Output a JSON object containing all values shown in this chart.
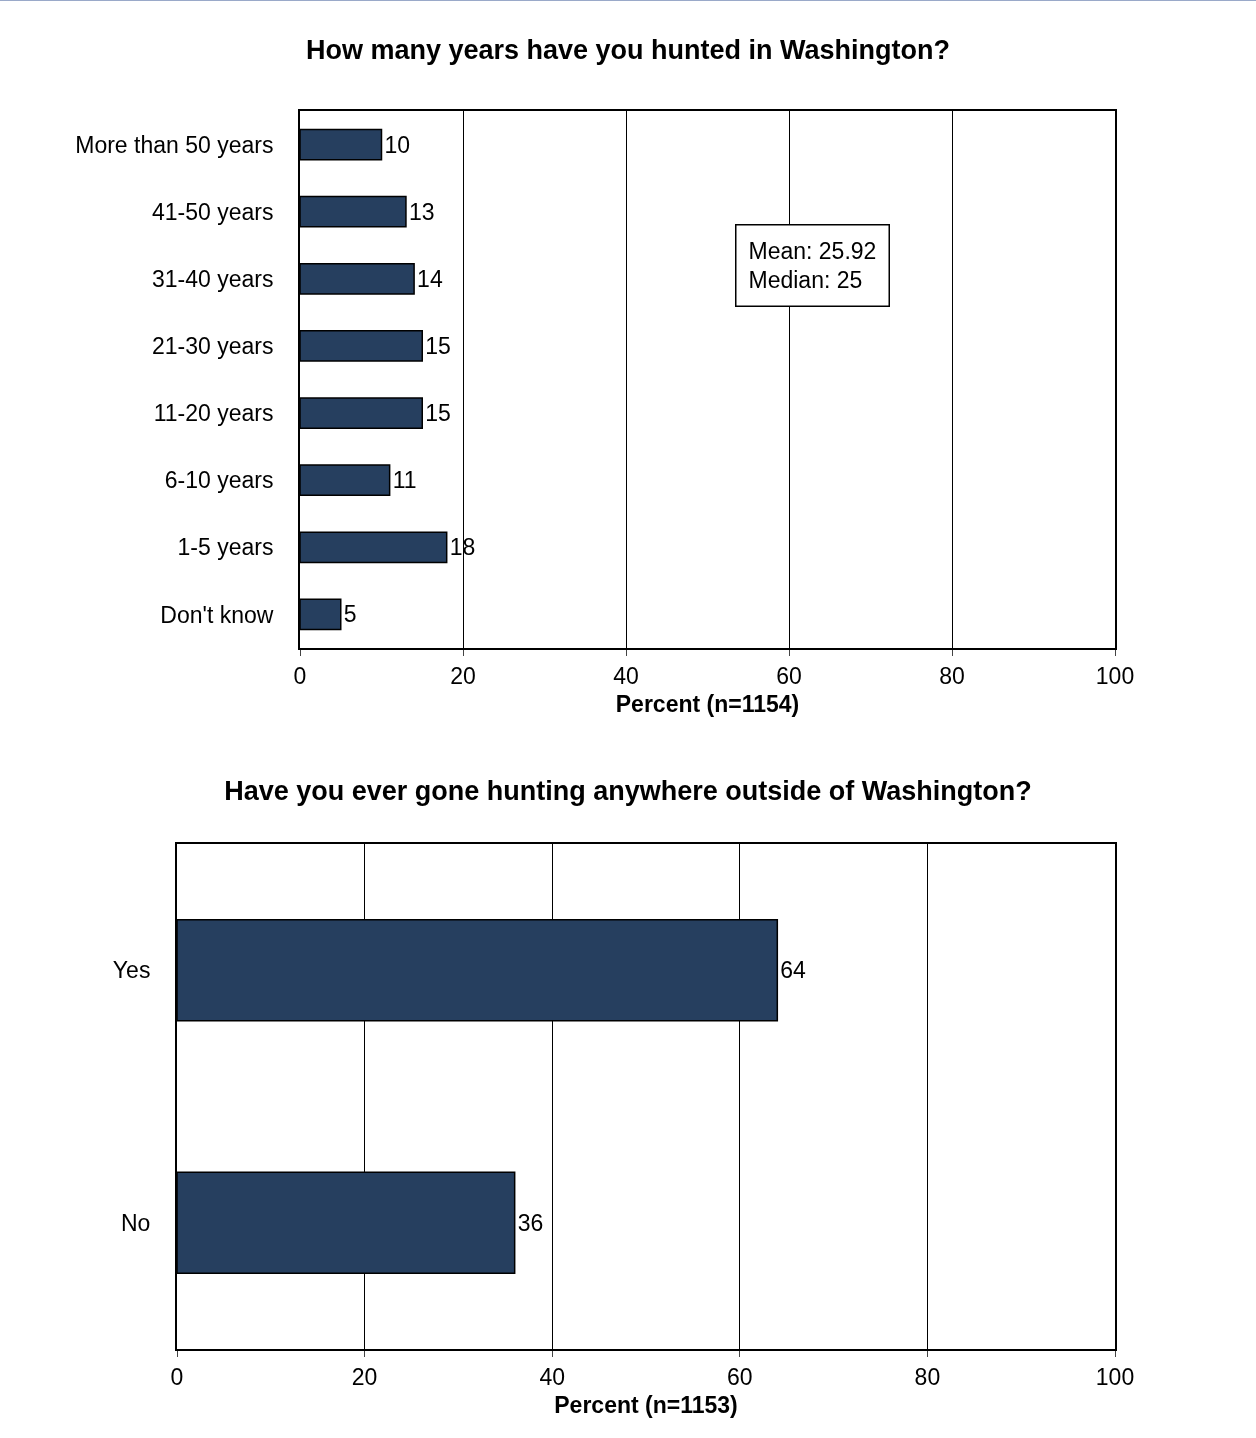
{
  "chart_data": [
    {
      "type": "bar",
      "orientation": "horizontal",
      "title": "How many years have you hunted in Washington?",
      "xlabel": "Percent (n=1154)",
      "categories": [
        "More than 50 years",
        "41-50 years",
        "31-40 years",
        "21-30 years",
        "11-20 years",
        "6-10 years",
        "1-5 years",
        "Don't know"
      ],
      "values": [
        10,
        13,
        14,
        15,
        15,
        11,
        18,
        5
      ],
      "color": "#263f5f",
      "xlim": [
        0,
        100
      ],
      "xticks": [
        0,
        20,
        40,
        60,
        80,
        100
      ],
      "grid": "x",
      "data_labels": true,
      "annotations": [
        "Mean: 25.92\nMedian: 25"
      ]
    },
    {
      "type": "bar",
      "orientation": "horizontal",
      "title": "Have you ever gone hunting anywhere outside of Washington?",
      "xlabel": "Percent (n=1153)",
      "categories": [
        "Yes",
        "No"
      ],
      "values": [
        64,
        36
      ],
      "color": "#263f5f",
      "xlim": [
        0,
        100
      ],
      "xticks": [
        0,
        20,
        40,
        60,
        80,
        100
      ],
      "grid": "x",
      "data_labels": true
    }
  ]
}
